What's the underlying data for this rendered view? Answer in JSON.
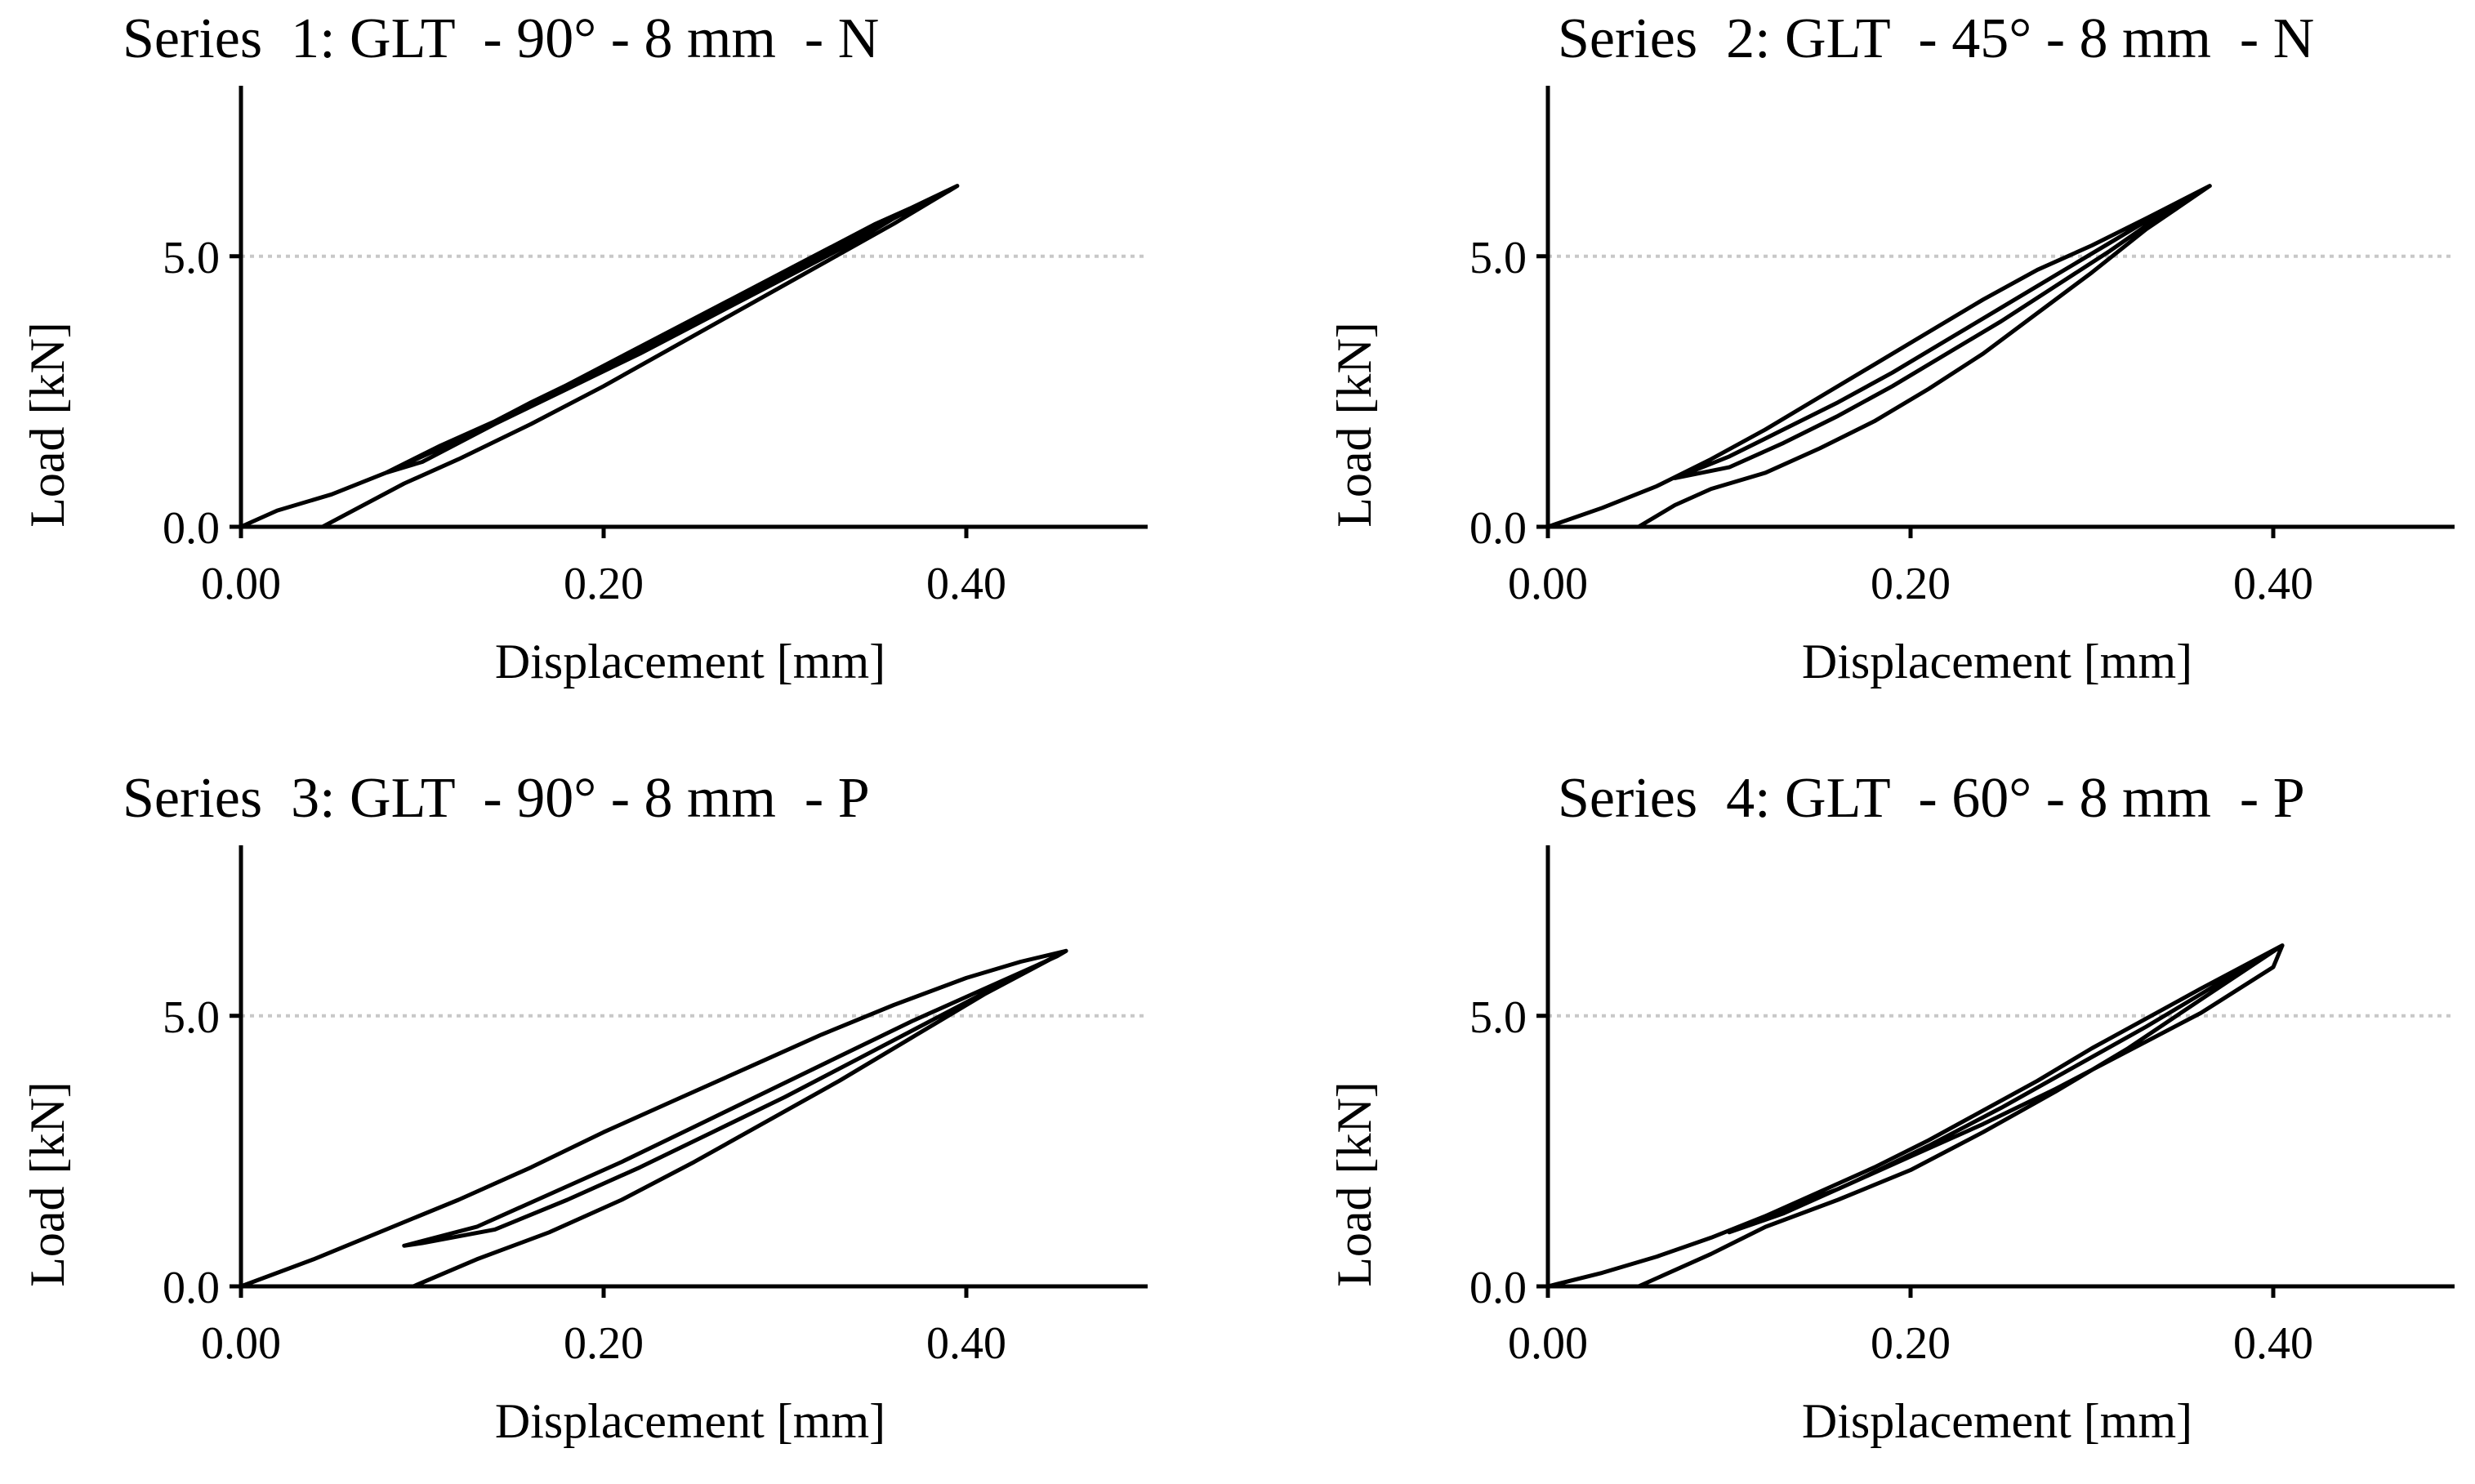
{
  "chart_data": [
    {
      "type": "line",
      "title": "Series  1: GLT  - 90° - 8 mm  - N",
      "xlabel": "Displacement [mm]",
      "ylabel": "Load [kN]",
      "xlim": [
        0,
        0.5
      ],
      "ylim": [
        0,
        8
      ],
      "xticks": [
        0.0,
        0.2,
        0.4
      ],
      "xtick_labels": [
        "0.00",
        "0.20",
        "0.40"
      ],
      "yticks": [
        0.0,
        5.0
      ],
      "ytick_labels": [
        "0.0",
        "5.0"
      ],
      "reference_lines": [
        5.0
      ],
      "grid": false,
      "legend": "none",
      "color": "#000000",
      "series": [
        {
          "x": [
            0.0,
            0.02,
            0.05,
            0.08,
            0.12,
            0.16,
            0.2,
            0.24,
            0.28,
            0.32,
            0.36,
            0.395,
            0.37,
            0.34,
            0.3,
            0.26,
            0.22,
            0.18,
            0.14,
            0.1,
            0.08,
            0.11,
            0.15,
            0.19,
            0.23,
            0.27,
            0.31,
            0.35,
            0.39,
            0.395,
            0.36,
            0.32,
            0.28,
            0.24,
            0.2,
            0.16,
            0.12,
            0.09,
            0.045
          ],
          "y": [
            0.0,
            0.3,
            0.6,
            1.0,
            1.6,
            2.3,
            2.95,
            3.6,
            4.3,
            5.0,
            5.7,
            6.3,
            5.9,
            5.3,
            4.6,
            3.9,
            3.2,
            2.55,
            1.9,
            1.2,
            1.0,
            1.5,
            2.1,
            2.8,
            3.5,
            4.2,
            4.9,
            5.6,
            6.2,
            6.3,
            5.6,
            4.85,
            4.1,
            3.35,
            2.6,
            1.9,
            1.25,
            0.8,
            0.0
          ]
        }
      ]
    },
    {
      "type": "line",
      "title": "Series  2: GLT  - 45° - 8 mm  - N",
      "xlabel": "Displacement [mm]",
      "ylabel": "Load [kN]",
      "xlim": [
        0,
        0.5
      ],
      "ylim": [
        0,
        8
      ],
      "xticks": [
        0.0,
        0.2,
        0.4
      ],
      "xtick_labels": [
        "0.00",
        "0.20",
        "0.40"
      ],
      "yticks": [
        0.0,
        5.0
      ],
      "ytick_labels": [
        "0.0",
        "5.0"
      ],
      "reference_lines": [
        5.0
      ],
      "grid": false,
      "legend": "none",
      "color": "#000000",
      "series": [
        {
          "x": [
            0.0,
            0.03,
            0.06,
            0.09,
            0.12,
            0.15,
            0.18,
            0.21,
            0.24,
            0.27,
            0.3,
            0.33,
            0.365,
            0.34,
            0.31,
            0.28,
            0.25,
            0.22,
            0.19,
            0.16,
            0.13,
            0.1,
            0.07,
            0.1,
            0.13,
            0.16,
            0.19,
            0.22,
            0.25,
            0.28,
            0.31,
            0.34,
            0.365,
            0.33,
            0.3,
            0.27,
            0.24,
            0.21,
            0.18,
            0.15,
            0.12,
            0.09,
            0.07,
            0.05
          ],
          "y": [
            0.0,
            0.35,
            0.75,
            1.25,
            1.8,
            2.4,
            3.0,
            3.6,
            4.2,
            4.75,
            5.2,
            5.7,
            6.3,
            5.8,
            5.1,
            4.45,
            3.8,
            3.2,
            2.6,
            2.05,
            1.55,
            1.1,
            0.9,
            1.3,
            1.8,
            2.3,
            2.85,
            3.45,
            4.05,
            4.65,
            5.25,
            5.85,
            6.3,
            5.5,
            4.7,
            3.95,
            3.2,
            2.55,
            1.95,
            1.45,
            1.0,
            0.7,
            0.4,
            0.0
          ]
        }
      ]
    },
    {
      "type": "line",
      "title": "Series  3: GLT  - 90° - 8 mm  - P",
      "xlabel": "Displacement [mm]",
      "ylabel": "Load [kN]",
      "xlim": [
        0,
        0.5
      ],
      "ylim": [
        0,
        8
      ],
      "xticks": [
        0.0,
        0.2,
        0.4
      ],
      "xtick_labels": [
        "0.00",
        "0.20",
        "0.40"
      ],
      "yticks": [
        0.0,
        5.0
      ],
      "ytick_labels": [
        "0.0",
        "5.0"
      ],
      "reference_lines": [
        5.0
      ],
      "grid": false,
      "legend": "none",
      "color": "#000000",
      "series": [
        {
          "x": [
            0.0,
            0.04,
            0.08,
            0.12,
            0.16,
            0.2,
            0.24,
            0.28,
            0.32,
            0.36,
            0.4,
            0.43,
            0.455,
            0.42,
            0.38,
            0.34,
            0.3,
            0.26,
            0.22,
            0.18,
            0.14,
            0.1,
            0.09,
            0.13,
            0.17,
            0.21,
            0.25,
            0.29,
            0.33,
            0.37,
            0.41,
            0.45,
            0.455,
            0.41,
            0.37,
            0.33,
            0.29,
            0.25,
            0.21,
            0.17,
            0.13,
            0.095
          ],
          "y": [
            0.0,
            0.5,
            1.05,
            1.6,
            2.2,
            2.85,
            3.45,
            4.05,
            4.65,
            5.2,
            5.7,
            6.0,
            6.2,
            5.6,
            4.9,
            4.2,
            3.5,
            2.85,
            2.2,
            1.6,
            1.05,
            0.8,
            0.75,
            1.1,
            1.7,
            2.3,
            2.95,
            3.6,
            4.25,
            4.9,
            5.5,
            6.1,
            6.2,
            5.4,
            4.6,
            3.8,
            3.05,
            2.3,
            1.6,
            1.0,
            0.5,
            0.0
          ]
        }
      ]
    },
    {
      "type": "line",
      "title": "Series  4: GLT  - 60° - 8 mm  - P",
      "xlabel": "Displacement [mm]",
      "ylabel": "Load [kN]",
      "xlim": [
        0,
        0.5
      ],
      "ylim": [
        0,
        8
      ],
      "xticks": [
        0.0,
        0.2,
        0.4
      ],
      "xtick_labels": [
        "0.00",
        "0.20",
        "0.40"
      ],
      "yticks": [
        0.0,
        5.0
      ],
      "ytick_labels": [
        "0.0",
        "5.0"
      ],
      "reference_lines": [
        5.0
      ],
      "grid": false,
      "legend": "none",
      "color": "#000000",
      "series": [
        {
          "x": [
            0.0,
            0.03,
            0.06,
            0.09,
            0.12,
            0.15,
            0.18,
            0.21,
            0.24,
            0.27,
            0.3,
            0.33,
            0.36,
            0.405,
            0.37,
            0.33,
            0.29,
            0.25,
            0.21,
            0.17,
            0.13,
            0.1,
            0.12,
            0.16,
            0.2,
            0.24,
            0.28,
            0.32,
            0.36,
            0.4,
            0.405,
            0.36,
            0.32,
            0.28,
            0.24,
            0.2,
            0.16,
            0.12,
            0.09,
            0.05
          ],
          "y": [
            0.0,
            0.25,
            0.55,
            0.9,
            1.3,
            1.75,
            2.2,
            2.7,
            3.25,
            3.8,
            4.4,
            4.95,
            5.5,
            6.3,
            5.6,
            4.8,
            4.05,
            3.3,
            2.6,
            1.95,
            1.35,
            1.0,
            1.3,
            1.8,
            2.4,
            3.0,
            3.65,
            4.35,
            5.05,
            5.9,
            6.3,
            5.3,
            4.4,
            3.6,
            2.85,
            2.15,
            1.6,
            1.1,
            0.6,
            0.0
          ]
        }
      ]
    }
  ]
}
